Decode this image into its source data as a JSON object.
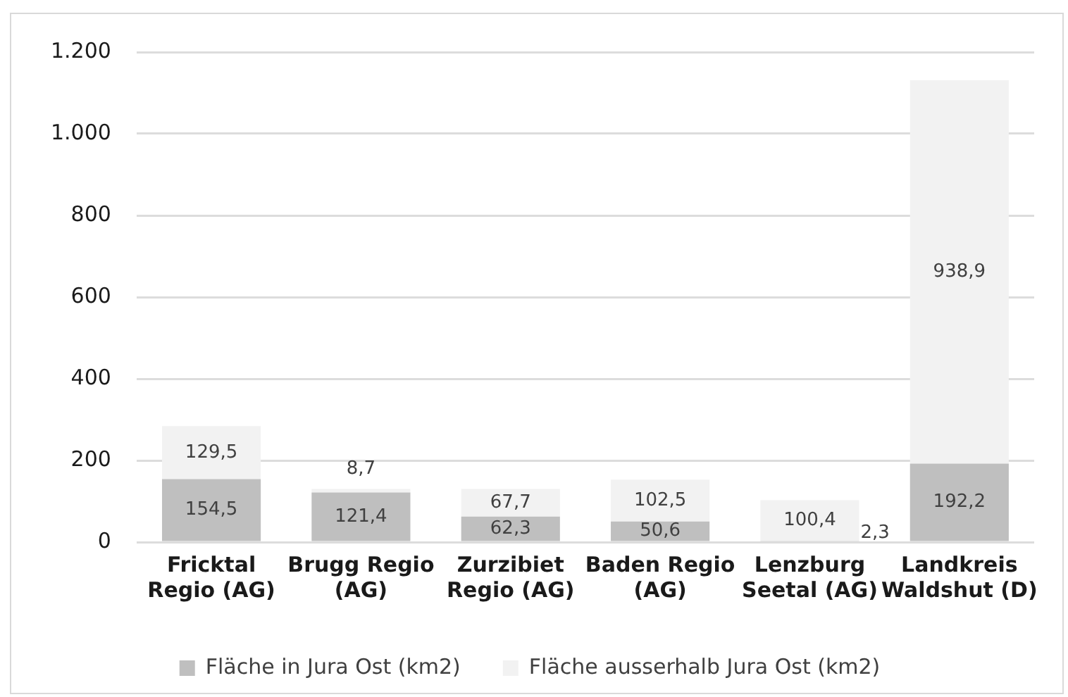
{
  "chart_data": {
    "type": "bar",
    "stacked": true,
    "categories": [
      "Fricktal Regio (AG)",
      "Brugg Regio (AG)",
      "Zurzibiet Regio (AG)",
      "Baden Regio (AG)",
      "Lenzburg Seetal (AG)",
      "Landkreis Waldshut (D)"
    ],
    "series": [
      {
        "name": "Fläche in Jura Ost (km2)",
        "color": "#bfbfbf",
        "values": [
          154.5,
          121.4,
          62.3,
          50.6,
          2.3,
          192.2
        ],
        "value_labels": [
          "154,5",
          "121,4",
          "62,3",
          "50,6",
          "2,3",
          "192,2"
        ]
      },
      {
        "name": "Fläche ausserhalb Jura Ost (km2)",
        "color": "#f2f2f2",
        "values": [
          129.5,
          8.7,
          67.7,
          102.5,
          100.4,
          938.9
        ],
        "value_labels": [
          "129,5",
          "8,7",
          "67,7",
          "102,5",
          "100,4",
          "938,9"
        ]
      }
    ],
    "ylim": [
      0,
      1200
    ],
    "yticks": [
      0,
      {
        "value": 200,
        "label": "200"
      },
      {
        "value": 400,
        "label": "400"
      },
      {
        "value": 600,
        "label": "600"
      },
      {
        "value": 800,
        "label": "800"
      },
      {
        "value": 1000,
        "label": "1.000"
      },
      {
        "value": 1200,
        "label": "1.200"
      }
    ],
    "grid": "y",
    "legend": "bottom"
  }
}
